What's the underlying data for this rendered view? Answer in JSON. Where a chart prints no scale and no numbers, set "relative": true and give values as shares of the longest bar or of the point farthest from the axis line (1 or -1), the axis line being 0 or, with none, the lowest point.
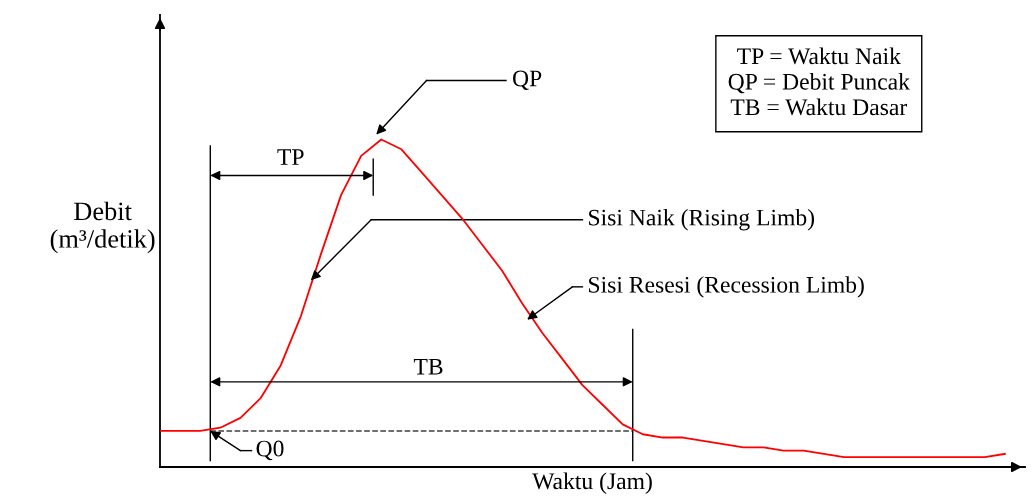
{
  "chart_data": {
    "type": "line",
    "relative": true,
    "xlabel": "Waktu (Jam)",
    "ylabel": "Debit\n(m³/detik)",
    "categories": [
      null,
      null,
      null,
      null,
      null,
      null,
      null,
      null,
      null,
      null,
      null,
      null,
      null,
      null,
      null,
      null,
      null,
      null,
      null,
      null,
      null,
      null,
      null,
      null,
      null,
      null,
      null,
      null,
      null,
      null,
      null,
      null,
      null,
      null,
      null,
      null,
      null,
      null,
      null,
      null,
      null,
      null,
      null
    ],
    "series": [
      {
        "color": "#ff0000",
        "values": [
          0.11,
          0.11,
          0.11,
          0.12,
          0.15,
          0.21,
          0.31,
          0.46,
          0.65,
          0.83,
          0.95,
          1.0,
          0.97,
          0.9,
          0.83,
          0.76,
          0.68,
          0.6,
          0.5,
          0.41,
          0.33,
          0.25,
          0.19,
          0.13,
          0.1,
          0.09,
          0.09,
          0.08,
          0.07,
          0.06,
          0.06,
          0.05,
          0.05,
          0.04,
          0.03,
          0.03,
          0.03,
          0.03,
          0.03,
          0.03,
          0.03,
          0.03,
          0.04
        ]
      }
    ],
    "ref_lines": [
      {
        "axis": "y",
        "value": 0.11,
        "color": "#404040",
        "line_style": "dashed"
      }
    ],
    "annotations": [
      "TP",
      "QP",
      "TB",
      "Q0",
      "Sisi Naik (Rising Limb)",
      "Sisi Resesi (Recession Limb)",
      "TP = Waktu Naik\nQP = Debit Puncak\nTB = Waktu Dasar"
    ],
    "grid": false,
    "legend": false,
    "marker": "none",
    "line_style": "solid",
    "tick_labels": false
  }
}
